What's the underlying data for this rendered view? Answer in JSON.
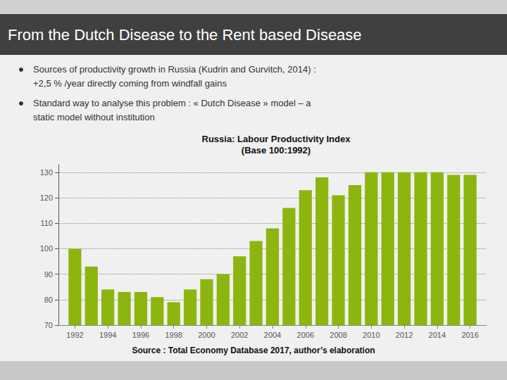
{
  "chart_data": {
    "type": "bar",
    "title": "Russia: Labour Productivity Index",
    "subtitle": "(Base 100:1992)",
    "annotations": [
      "From the Dutch Disease to the Rent based Disease",
      "Sources of productivity growth in Russia (Kudrin and Gurvitch, 2014) :",
      "+2,5 % /year directly coming from windfall gains",
      "Standard way to analyse this problem : « Dutch Disease » model – a",
      "static model without institution",
      "Source : Total Economy Database 2017, author’s elaboration"
    ],
    "x": [
      1992,
      1993,
      1994,
      1995,
      1996,
      1997,
      1998,
      1999,
      2000,
      2001,
      2002,
      2003,
      2004,
      2005,
      2006,
      2007,
      2008,
      2009,
      2010,
      2011,
      2012,
      2013,
      2014,
      2015,
      2016
    ],
    "values": [
      100,
      93,
      84,
      83,
      83,
      81,
      79,
      84,
      88,
      90,
      97,
      103,
      108,
      116,
      123,
      128,
      121,
      125,
      130,
      130,
      130,
      130,
      130,
      129,
      129
    ],
    "color": "#8db510",
    "xlim": [
      1991,
      2017
    ],
    "xticks": [
      1992,
      1994,
      1996,
      1998,
      2000,
      2002,
      2004,
      2006,
      2008,
      2010,
      2012,
      2014,
      2016
    ],
    "ylim": [
      70,
      133
    ],
    "yticks": [
      70,
      80,
      90,
      100,
      110,
      120,
      130
    ],
    "grid": true
  }
}
